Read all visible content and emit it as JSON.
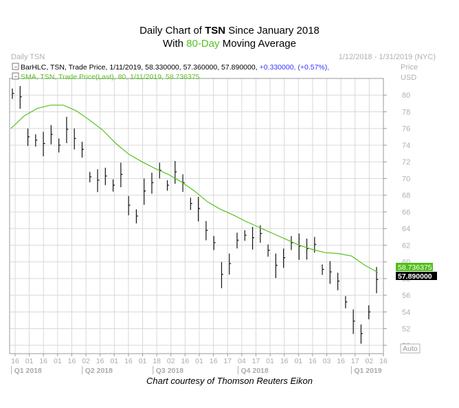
{
  "title": {
    "line1_prefix": "Daily Chart of ",
    "line1_ticker": "TSN",
    "line1_suffix": " Since January 2018",
    "line2_prefix": "With ",
    "line2_highlight": "80-Day",
    "line2_suffix": " Moving Average"
  },
  "panel": {
    "name": "Daily TSN",
    "date_range": "1/12/2018 - 1/31/2019 (NYC)",
    "price_label": "Price",
    "currency_label": "USD",
    "auto_label": "Auto"
  },
  "legend": {
    "bar_text": "BarHLC, TSN, Trade Price, 1/11/2019, 58.330000, 57.360000, 57.890000,",
    "bar_change": "+0.330000, (+0.57%),",
    "sma_text": "SMA, TSN, Trade Price(Last), 80, 1/11/2019, 58.736375"
  },
  "credit": "Chart courtesy of Thomson Reuters Eikon",
  "colors": {
    "bars": "#111111",
    "sma": "#56c11f",
    "change": "#3333ff",
    "grid": "#d8d8d8",
    "sma_tag": "#4fbf16",
    "close_tag": "#000000"
  },
  "chart_data": {
    "type": "bar",
    "subtype": "OHLC (high-low-close)",
    "yaxis_ticks": [
      "50",
      "52",
      "54",
      "56",
      "58",
      "60",
      "62",
      "64",
      "66",
      "68",
      "70",
      "72",
      "74",
      "76",
      "78",
      "80"
    ],
    "ylim": [
      49,
      82
    ],
    "xaxis_day_ticks": [
      "16",
      "01",
      "16",
      "01",
      "16",
      "02",
      "16",
      "01",
      "16",
      "01",
      "18",
      "02",
      "16",
      "01",
      "16",
      "17",
      "04",
      "17",
      "01",
      "16",
      "01",
      "16",
      "03",
      "16",
      "17",
      "02",
      "16"
    ],
    "xaxis_quarters": [
      "Q1 2018",
      "Q2 2018",
      "Q3 2018",
      "Q4 2018",
      "Q1 2019"
    ],
    "last_close_tag": "57.890000",
    "sma_tag": "58.736375",
    "series": [
      {
        "name": "BarHLC",
        "description": "approximate weekly-sampled closing prices, Jan 2018 - Jan 2019",
        "values": [
          80.2,
          79.8,
          75.0,
          74.6,
          74.2,
          75.3,
          74.0,
          75.9,
          74.8,
          73.5,
          70.2,
          69.8,
          70.3,
          69.2,
          70.5,
          66.8,
          65.5,
          68.5,
          69.5,
          71.0,
          69.2,
          70.8,
          69.5,
          67.0,
          66.4,
          63.8,
          62.3,
          58.5,
          59.8,
          62.6,
          63.2,
          62.9,
          63.4,
          61.4,
          59.6,
          60.5,
          62.3,
          61.9,
          61.6,
          62.1,
          59.1,
          58.8,
          57.7,
          55.2,
          52.9,
          51.4,
          54.0,
          57.89
        ]
      },
      {
        "name": "SMA 80",
        "values": [
          76.0,
          77.5,
          78.4,
          78.8,
          78.8,
          78.1,
          77.0,
          75.8,
          74.2,
          72.9,
          72.0,
          71.2,
          70.5,
          69.6,
          68.5,
          67.2,
          66.3,
          65.6,
          64.8,
          64.1,
          63.4,
          62.7,
          62.0,
          61.5,
          61.1,
          61.0,
          60.7,
          59.6,
          58.74
        ]
      }
    ]
  }
}
